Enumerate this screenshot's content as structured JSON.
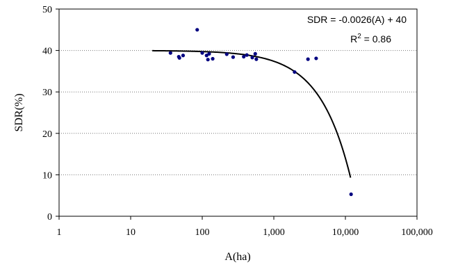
{
  "chart_data": {
    "type": "scatter",
    "xlabel": "A(ha)",
    "ylabel": "SDR(%)",
    "xscale": "log",
    "xlim": [
      1,
      100000
    ],
    "ylim": [
      0,
      50
    ],
    "x_ticks": [
      1,
      10,
      100,
      1000,
      10000,
      100000
    ],
    "x_tick_labels": [
      "1",
      "10",
      "100",
      "1,000",
      "10,000",
      "100,000"
    ],
    "y_ticks": [
      0,
      10,
      20,
      30,
      40,
      50
    ],
    "y_tick_labels": [
      "0",
      "10",
      "20",
      "30",
      "40",
      "50"
    ],
    "grid": "horizontal-dotted",
    "marker_color": "#000080",
    "line_color": "#000000",
    "points": [
      {
        "x": 36,
        "y": 39.4
      },
      {
        "x": 47,
        "y": 38.5
      },
      {
        "x": 48,
        "y": 38.2
      },
      {
        "x": 54,
        "y": 38.8
      },
      {
        "x": 85,
        "y": 45.0
      },
      {
        "x": 100,
        "y": 39.4
      },
      {
        "x": 115,
        "y": 38.8
      },
      {
        "x": 120,
        "y": 37.8
      },
      {
        "x": 125,
        "y": 39.2
      },
      {
        "x": 140,
        "y": 38.0
      },
      {
        "x": 220,
        "y": 39.1
      },
      {
        "x": 270,
        "y": 38.4
      },
      {
        "x": 380,
        "y": 38.5
      },
      {
        "x": 420,
        "y": 38.9
      },
      {
        "x": 500,
        "y": 38.3
      },
      {
        "x": 550,
        "y": 39.2
      },
      {
        "x": 570,
        "y": 37.9
      },
      {
        "x": 1950,
        "y": 34.8
      },
      {
        "x": 3000,
        "y": 37.9
      },
      {
        "x": 3900,
        "y": 38.1
      },
      {
        "x": 12000,
        "y": 5.3
      }
    ],
    "trendline": {
      "slope": -0.0026,
      "intercept": 40,
      "x_range": [
        20,
        11800
      ]
    },
    "annotations": {
      "equation": "SDR = -0.0026(A) + 40",
      "r2_prefix": "R",
      "r2_sup": "2",
      "r2_value": " = 0.86"
    }
  }
}
